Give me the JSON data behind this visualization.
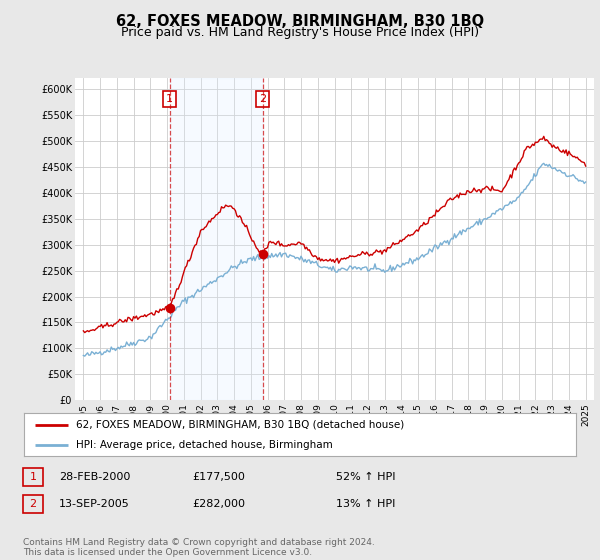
{
  "title": "62, FOXES MEADOW, BIRMINGHAM, B30 1BQ",
  "subtitle": "Price paid vs. HM Land Registry's House Price Index (HPI)",
  "ylim": [
    0,
    620000
  ],
  "yticks": [
    0,
    50000,
    100000,
    150000,
    200000,
    250000,
    300000,
    350000,
    400000,
    450000,
    500000,
    550000,
    600000
  ],
  "ytick_labels": [
    "£0",
    "£50K",
    "£100K",
    "£150K",
    "£200K",
    "£250K",
    "£300K",
    "£350K",
    "£400K",
    "£450K",
    "£500K",
    "£550K",
    "£600K"
  ],
  "bg_color": "#e8e8e8",
  "plot_bg_color": "#ffffff",
  "grid_color": "#cccccc",
  "red_line_color": "#cc0000",
  "blue_line_color": "#7ab0d4",
  "shade_color": "#ddeeff",
  "sale1_date": 2000.15,
  "sale1_price": 177500,
  "sale2_date": 2005.71,
  "sale2_price": 282000,
  "transaction1": {
    "label": "1",
    "date": "28-FEB-2000",
    "price": "£177,500",
    "change": "52% ↑ HPI"
  },
  "transaction2": {
    "label": "2",
    "date": "13-SEP-2005",
    "price": "£282,000",
    "change": "13% ↑ HPI"
  },
  "legend_line1": "62, FOXES MEADOW, BIRMINGHAM, B30 1BQ (detached house)",
  "legend_line2": "HPI: Average price, detached house, Birmingham",
  "footer": "Contains HM Land Registry data © Crown copyright and database right 2024.\nThis data is licensed under the Open Government Licence v3.0.",
  "title_fontsize": 10.5,
  "subtitle_fontsize": 9
}
